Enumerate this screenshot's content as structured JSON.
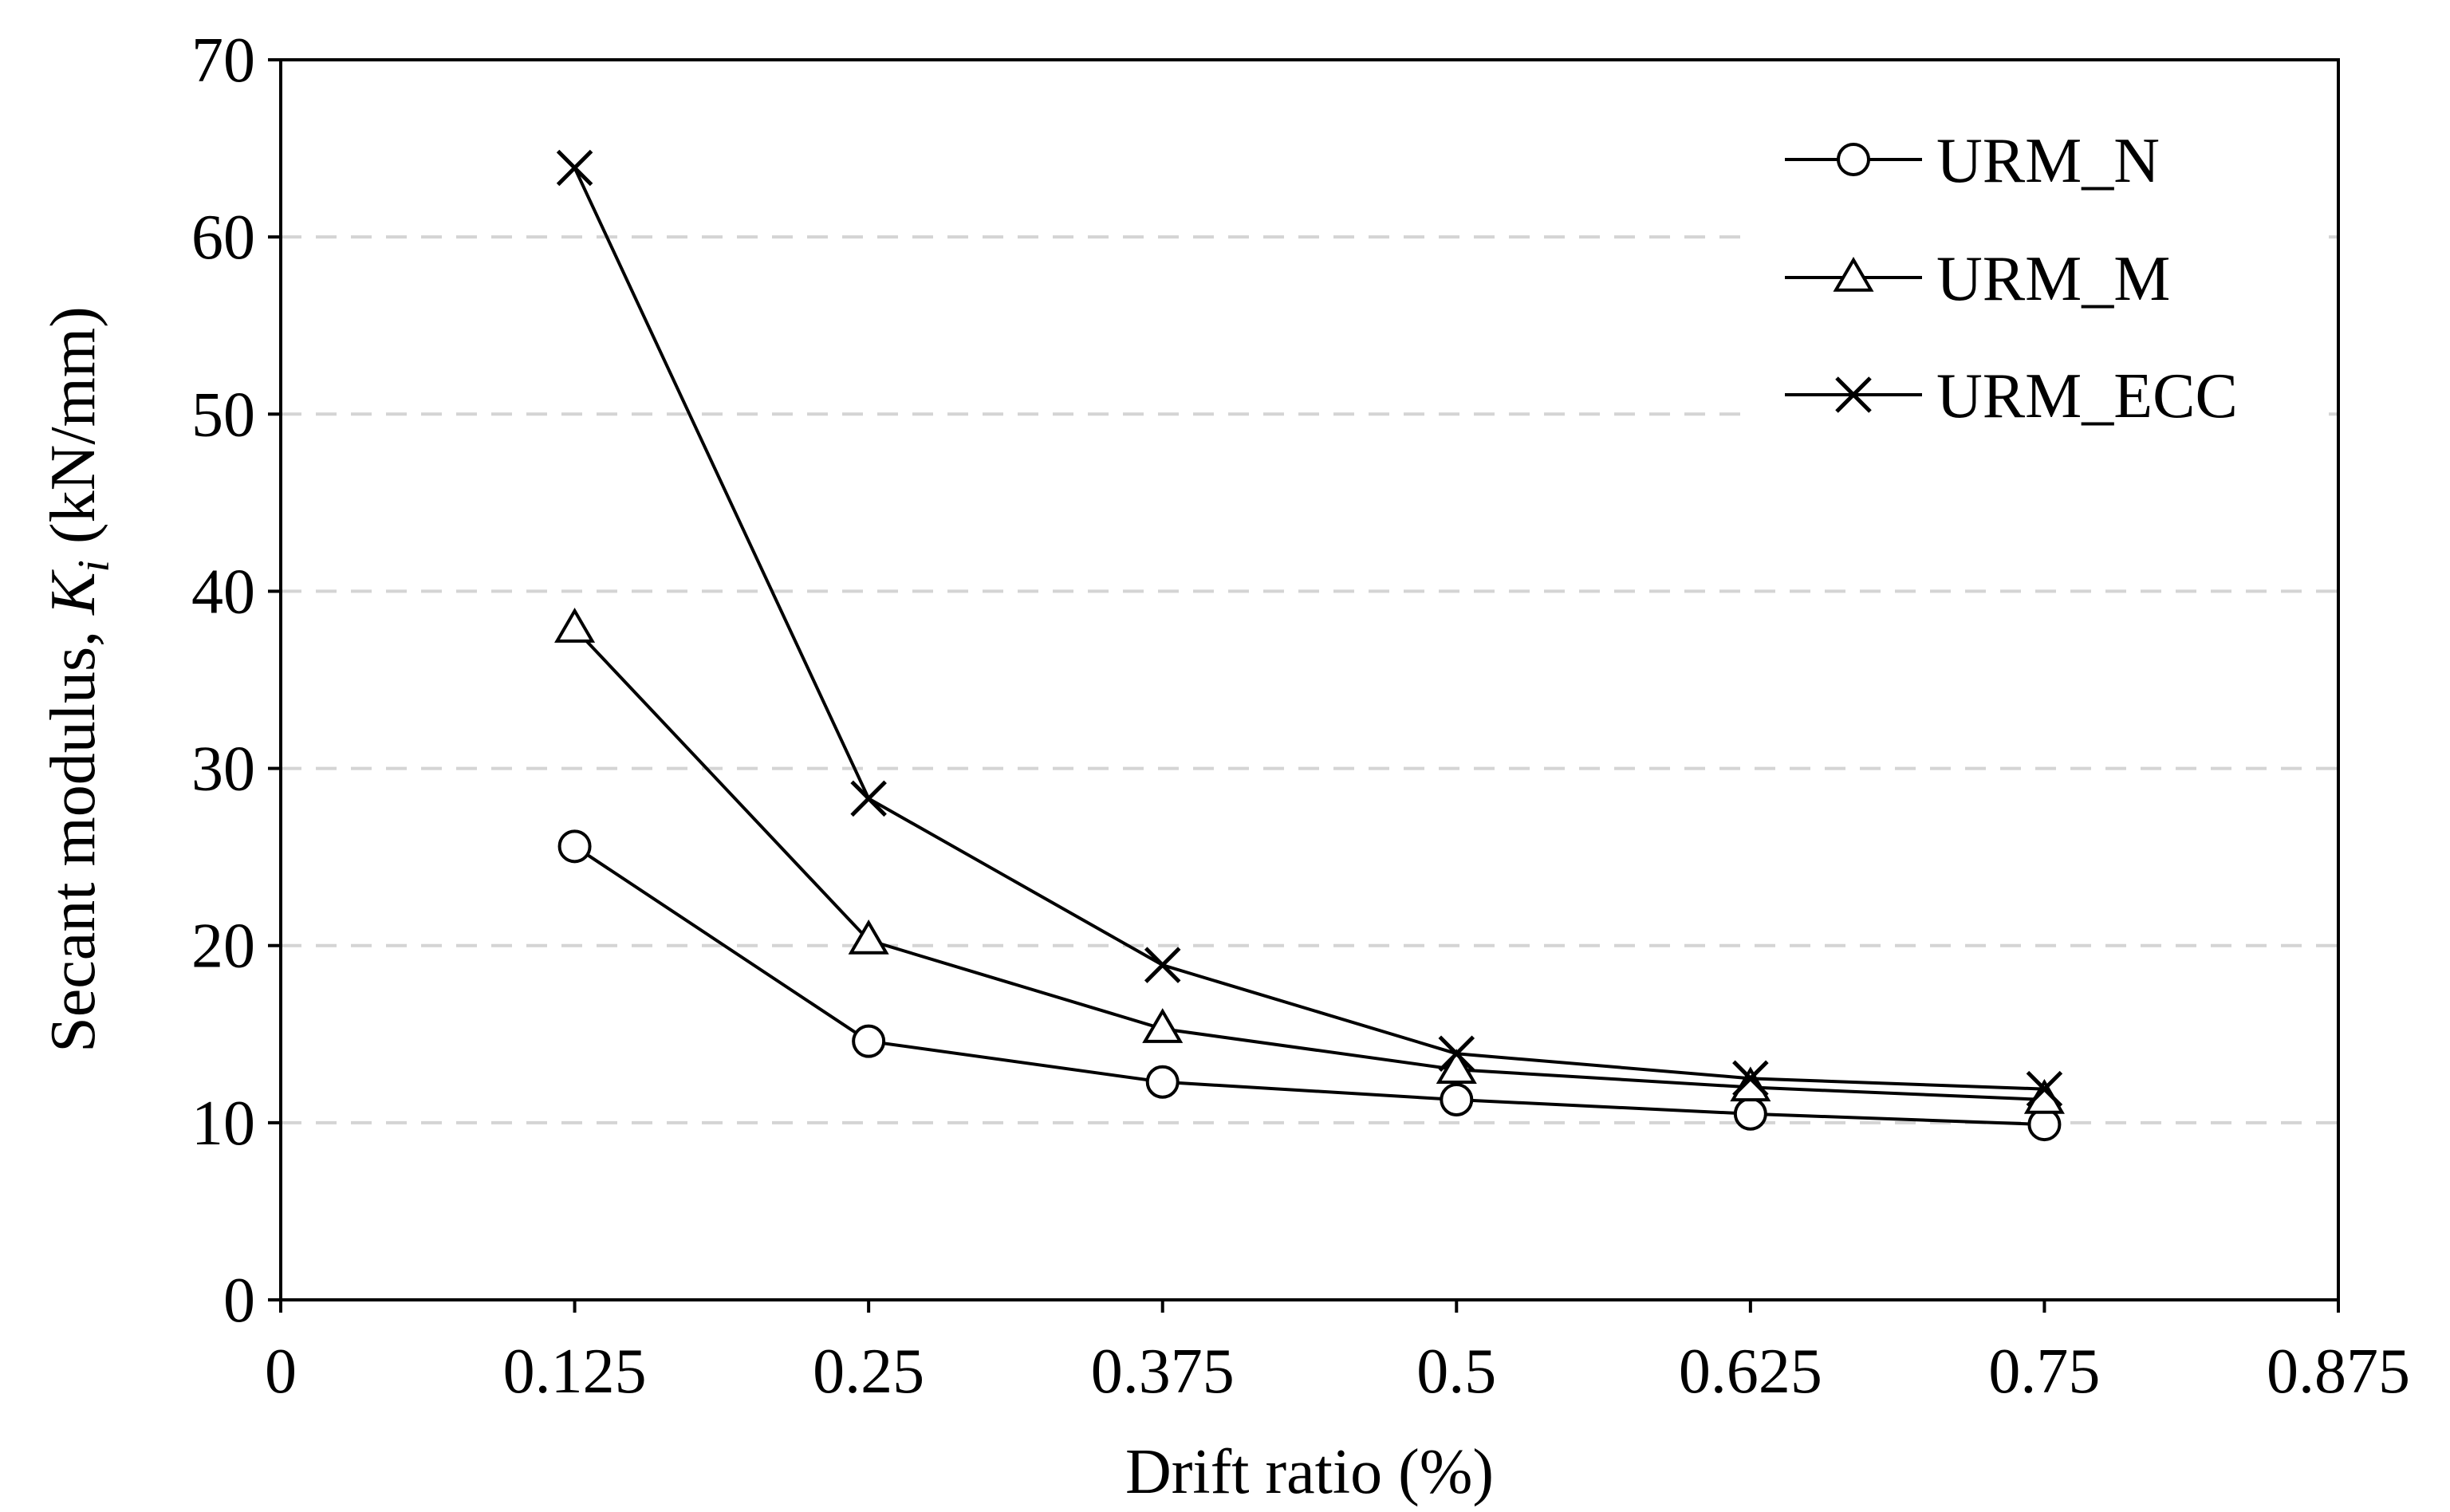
{
  "chart_data": {
    "type": "line",
    "xlabel": "Drift ratio (%)",
    "ylabel_prefix": "Secant modulus, ",
    "ylabel_symbol": "K",
    "ylabel_subscript": "i",
    "ylabel_suffix": " (kN/mm)",
    "xlim": [
      0,
      0.875
    ],
    "ylim": [
      0,
      70
    ],
    "xticks": [
      "0",
      "0.125",
      "0.25",
      "0.375",
      "0.5",
      "0.625",
      "0.75",
      "0.875"
    ],
    "yticks": [
      "0",
      "10",
      "20",
      "30",
      "40",
      "50",
      "60",
      "70"
    ],
    "x": [
      0.125,
      0.25,
      0.375,
      0.5,
      0.625,
      0.75
    ],
    "grid": "horizontal-dashed",
    "legend_position": "top-right",
    "series": [
      {
        "name": "URM_N",
        "marker": "circle",
        "values": [
          25.6,
          14.6,
          12.3,
          11.3,
          10.5,
          9.9
        ]
      },
      {
        "name": "URM_M",
        "marker": "triangle",
        "values": [
          37.9,
          20.3,
          15.3,
          13.0,
          12.0,
          11.3
        ]
      },
      {
        "name": "URM_ECC",
        "marker": "cross",
        "values": [
          63.9,
          28.3,
          18.9,
          13.9,
          12.5,
          11.9
        ]
      }
    ]
  }
}
